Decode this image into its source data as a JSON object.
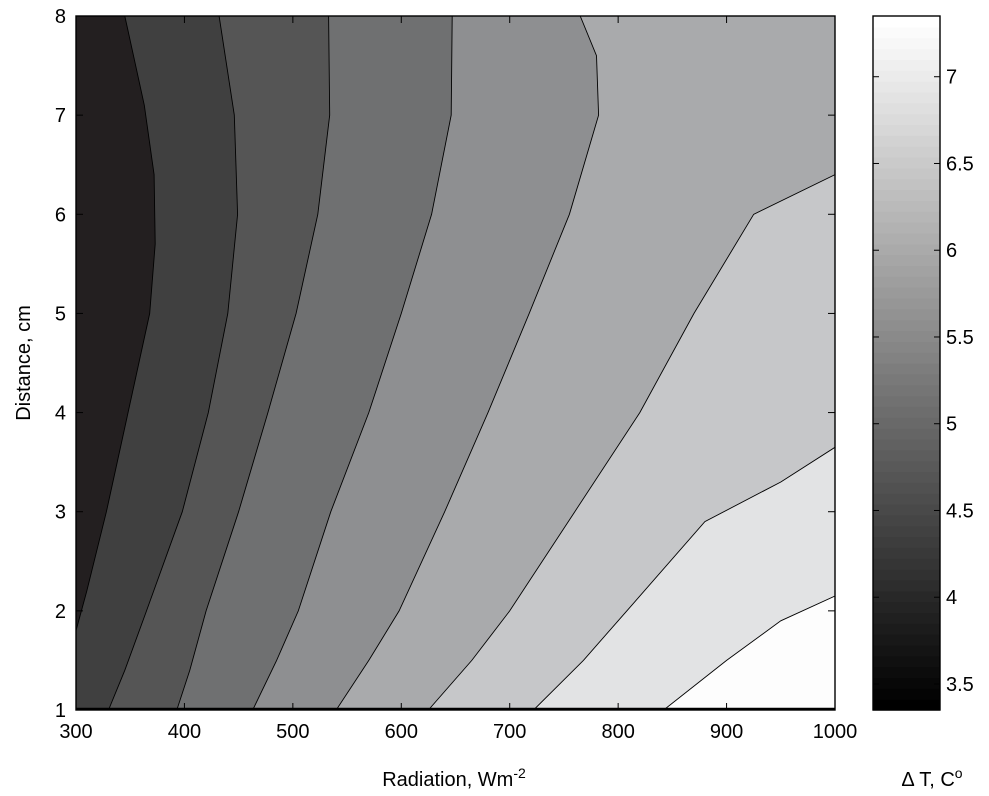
{
  "chart_data": {
    "type": "contour",
    "xlabel": "Radiation, Wm",
    "xlabel_superscript": "-2",
    "ylabel": "Distance, cm",
    "colorbar_label": "Δ T, C",
    "colorbar_label_superscript": "o",
    "xlim": [
      300,
      1000
    ],
    "ylim": [
      1,
      8
    ],
    "x_ticks": [
      "300",
      "400",
      "500",
      "600",
      "700",
      "800",
      "900",
      "1000"
    ],
    "y_ticks": [
      "1",
      "2",
      "3",
      "4",
      "5",
      "6",
      "7",
      "8"
    ],
    "colorbar_range": [
      3.35,
      7.35
    ],
    "colorbar_ticks": [
      "3.5",
      "4",
      "4.5",
      "5",
      "5.5",
      "6",
      "6.5",
      "7"
    ],
    "colormap": "gray",
    "levels": [
      3.5,
      4.0,
      4.5,
      5.0,
      5.5,
      6.0,
      6.5,
      7.0
    ],
    "region_colors": [
      "#231f20",
      "#404040",
      "#555555",
      "#6f7071",
      "#8e8f91",
      "#a9aaac",
      "#c6c7c9",
      "#e2e3e4",
      "#fdfdfd"
    ],
    "contour_lines": [
      {
        "level": 3.5,
        "points": [
          [
            300,
            1.8
          ],
          [
            310,
            2.2
          ],
          [
            328,
            3.0
          ],
          [
            352,
            4.2
          ],
          [
            368,
            5.0
          ],
          [
            373,
            5.7
          ],
          [
            372,
            6.4
          ],
          [
            363,
            7.1
          ],
          [
            353,
            7.6
          ],
          [
            345,
            8.0
          ]
        ]
      },
      {
        "level": 4.0,
        "points": [
          [
            330,
            1.0
          ],
          [
            345,
            1.4
          ],
          [
            365,
            2.0
          ],
          [
            398,
            3.0
          ],
          [
            422,
            4.0
          ],
          [
            440,
            5.0
          ],
          [
            449,
            6.0
          ],
          [
            446,
            7.0
          ],
          [
            432,
            8.0
          ]
        ]
      },
      {
        "level": 4.5,
        "points": [
          [
            393,
            1.0
          ],
          [
            405,
            1.4
          ],
          [
            420,
            2.0
          ],
          [
            450,
            3.0
          ],
          [
            477,
            4.0
          ],
          [
            503,
            5.0
          ],
          [
            523,
            6.0
          ],
          [
            534,
            7.0
          ],
          [
            533,
            8.0
          ]
        ]
      },
      {
        "level": 5.0,
        "points": [
          [
            463,
            1.0
          ],
          [
            485,
            1.5
          ],
          [
            505,
            2.0
          ],
          [
            535,
            3.0
          ],
          [
            570,
            4.0
          ],
          [
            600,
            5.0
          ],
          [
            628,
            6.0
          ],
          [
            646,
            7.0
          ],
          [
            647,
            8.0
          ]
        ]
      },
      {
        "level": 5.5,
        "points": [
          [
            540,
            1.0
          ],
          [
            570,
            1.5
          ],
          [
            598,
            2.0
          ],
          [
            640,
            3.0
          ],
          [
            680,
            4.0
          ],
          [
            718,
            5.0
          ],
          [
            755,
            6.0
          ],
          [
            782,
            7.0
          ],
          [
            780,
            7.6
          ],
          [
            765,
            8.0
          ]
        ]
      },
      {
        "level": 6.0,
        "points": [
          [
            625,
            1.0
          ],
          [
            665,
            1.5
          ],
          [
            700,
            2.0
          ],
          [
            760,
            3.0
          ],
          [
            820,
            4.0
          ],
          [
            870,
            5.0
          ],
          [
            925,
            6.0
          ],
          [
            1000,
            6.4
          ]
        ]
      },
      {
        "level": 6.5,
        "points": [
          [
            722,
            1.0
          ],
          [
            768,
            1.5
          ],
          [
            808,
            2.0
          ],
          [
            880,
            2.9
          ],
          [
            950,
            3.3
          ],
          [
            1000,
            3.65
          ]
        ]
      },
      {
        "level": 7.0,
        "points": [
          [
            842,
            1.0
          ],
          [
            900,
            1.5
          ],
          [
            950,
            1.9
          ],
          [
            1000,
            2.15
          ]
        ]
      }
    ]
  }
}
